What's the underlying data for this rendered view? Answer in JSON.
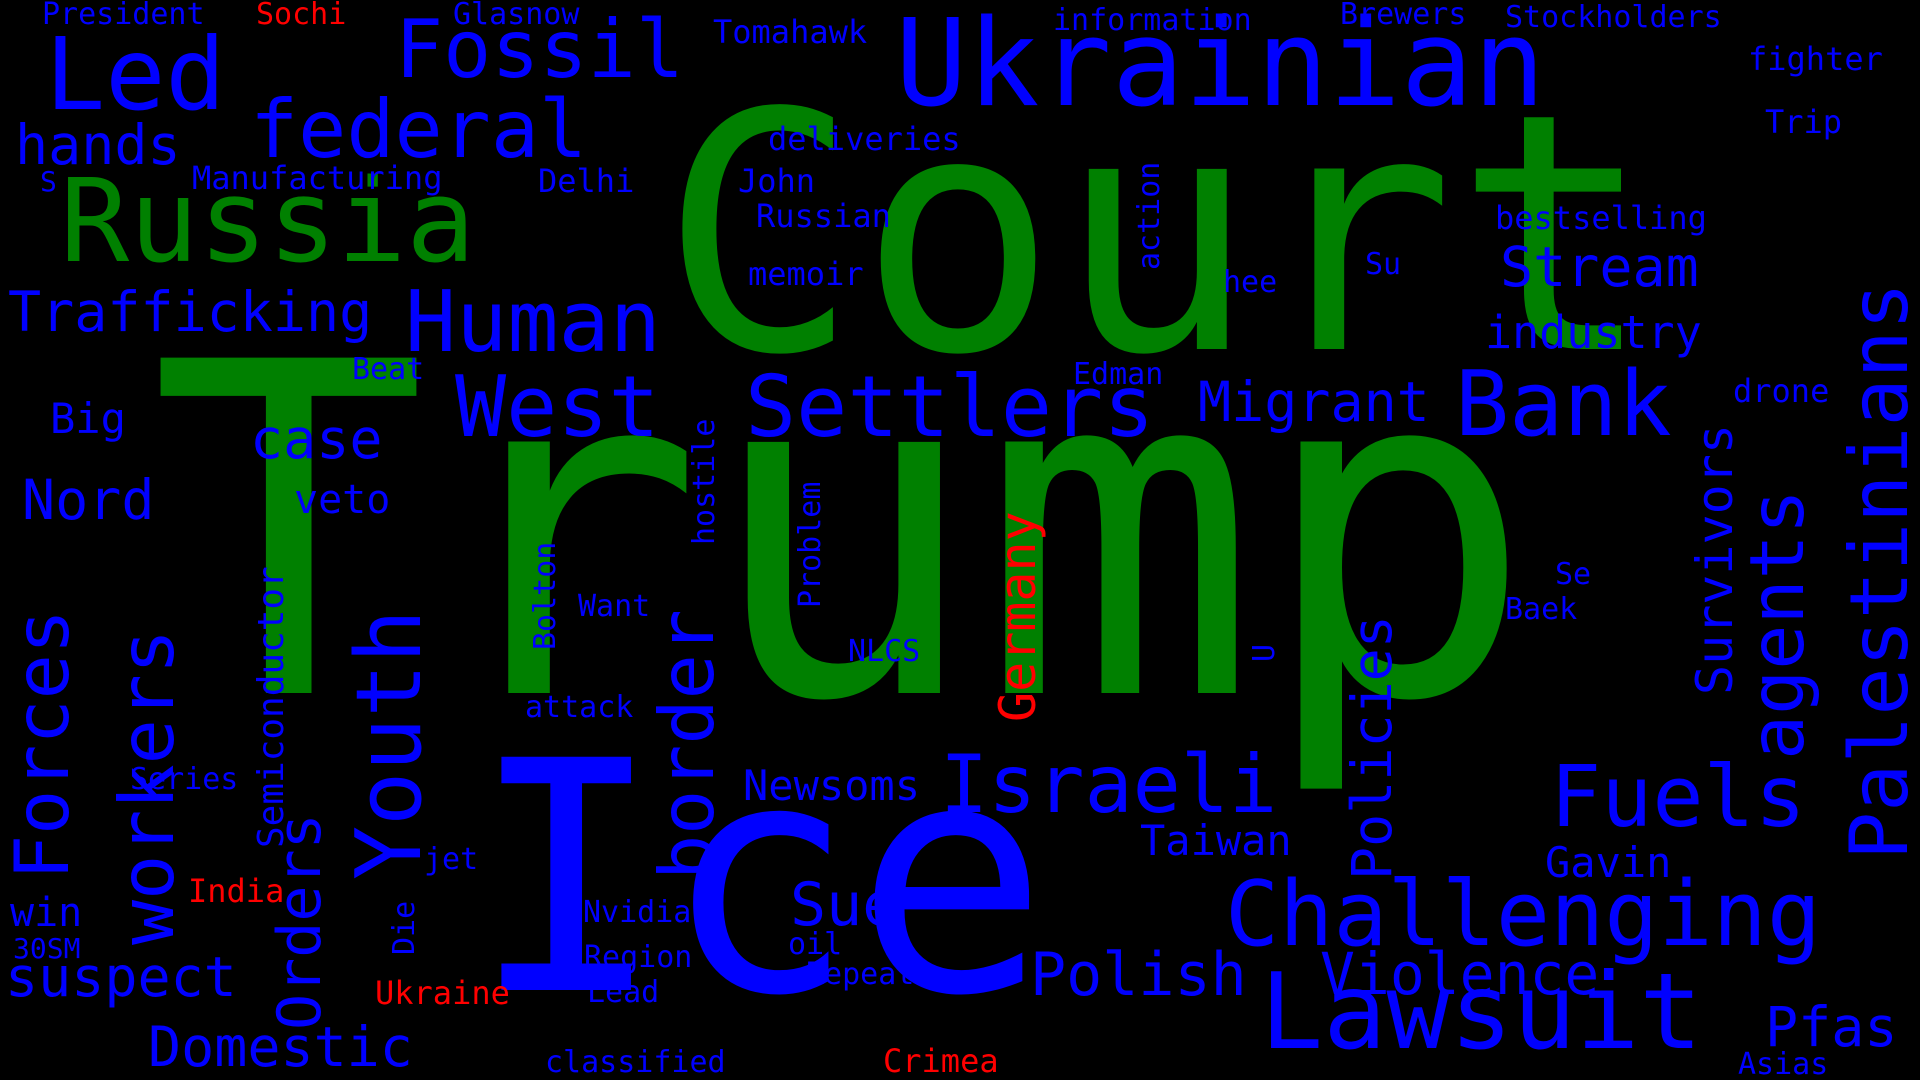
{
  "colors": {
    "background": "#000000",
    "green": "#008000",
    "blue": "#0000ff",
    "red": "#ff0000"
  },
  "words": [
    {
      "text": "Trump",
      "color": "green"
    },
    {
      "text": "Court",
      "color": "green"
    },
    {
      "text": "Ice",
      "color": "blue"
    },
    {
      "text": "Ukrainian",
      "color": "blue"
    },
    {
      "text": "Russia",
      "color": "green"
    },
    {
      "text": "Lawsuit",
      "color": "blue"
    },
    {
      "text": "Challenging",
      "color": "blue"
    },
    {
      "text": "Palestinians",
      "color": "blue"
    },
    {
      "text": "Fossil",
      "color": "blue"
    },
    {
      "text": "Led",
      "color": "blue"
    },
    {
      "text": "federal",
      "color": "blue"
    },
    {
      "text": "Human",
      "color": "blue"
    },
    {
      "text": "West",
      "color": "blue"
    },
    {
      "text": "Settlers",
      "color": "blue"
    },
    {
      "text": "Bank",
      "color": "blue"
    },
    {
      "text": "Israeli",
      "color": "blue"
    },
    {
      "text": "Fuels",
      "color": "blue"
    },
    {
      "text": "agents",
      "color": "blue"
    },
    {
      "text": "Youth",
      "color": "blue"
    },
    {
      "text": "Forces",
      "color": "blue"
    },
    {
      "text": "workers",
      "color": "blue"
    },
    {
      "text": "border",
      "color": "blue"
    },
    {
      "text": "Orders",
      "color": "blue"
    },
    {
      "text": "Domestic",
      "color": "blue"
    },
    {
      "text": "Polish",
      "color": "blue"
    },
    {
      "text": "Violence",
      "color": "blue"
    },
    {
      "text": "Pfas",
      "color": "blue"
    },
    {
      "text": "Stream",
      "color": "blue"
    },
    {
      "text": "Trafficking",
      "color": "blue"
    },
    {
      "text": "Migrant",
      "color": "blue"
    },
    {
      "text": "Policies",
      "color": "blue"
    },
    {
      "text": "Survivors",
      "color": "blue"
    },
    {
      "text": "suspect",
      "color": "blue"
    },
    {
      "text": "Sue",
      "color": "blue"
    },
    {
      "text": "hands",
      "color": "blue"
    },
    {
      "text": "Nord",
      "color": "blue"
    },
    {
      "text": "case",
      "color": "blue"
    },
    {
      "text": "industry",
      "color": "blue"
    },
    {
      "text": "Germany",
      "color": "red"
    },
    {
      "text": "Semiconductor",
      "color": "blue"
    },
    {
      "text": "Newsoms",
      "color": "blue"
    },
    {
      "text": "Taiwan",
      "color": "blue"
    },
    {
      "text": "Gavin",
      "color": "blue"
    },
    {
      "text": "veto",
      "color": "blue"
    },
    {
      "text": "Big",
      "color": "blue"
    },
    {
      "text": "win",
      "color": "blue"
    },
    {
      "text": "Manufacturing",
      "color": "blue"
    },
    {
      "text": "deliveries",
      "color": "blue"
    },
    {
      "text": "bestselling",
      "color": "blue"
    },
    {
      "text": "Russian",
      "color": "blue"
    },
    {
      "text": "memoir",
      "color": "blue"
    },
    {
      "text": "John",
      "color": "blue"
    },
    {
      "text": "Delhi",
      "color": "blue"
    },
    {
      "text": "fighter",
      "color": "blue"
    },
    {
      "text": "Trip",
      "color": "blue"
    },
    {
      "text": "drone",
      "color": "blue"
    },
    {
      "text": "Tomahawk",
      "color": "blue"
    },
    {
      "text": "Brewers",
      "color": "blue"
    },
    {
      "text": "Stockholders",
      "color": "blue"
    },
    {
      "text": "information",
      "color": "blue"
    },
    {
      "text": "Glasnow",
      "color": "blue"
    },
    {
      "text": "President",
      "color": "blue"
    },
    {
      "text": "Sochi",
      "color": "red"
    },
    {
      "text": "India",
      "color": "red"
    },
    {
      "text": "Ukraine",
      "color": "red"
    },
    {
      "text": "Crimea",
      "color": "red"
    },
    {
      "text": "action",
      "color": "blue"
    },
    {
      "text": "hee",
      "color": "blue"
    },
    {
      "text": "Su",
      "color": "blue"
    },
    {
      "text": "Edman",
      "color": "blue"
    },
    {
      "text": "Beat",
      "color": "blue"
    },
    {
      "text": "hostile",
      "color": "blue"
    },
    {
      "text": "Problem",
      "color": "blue"
    },
    {
      "text": "Bolton",
      "color": "blue"
    },
    {
      "text": "Want",
      "color": "blue"
    },
    {
      "text": "NLCS",
      "color": "blue"
    },
    {
      "text": "attack",
      "color": "blue"
    },
    {
      "text": "Series",
      "color": "blue"
    },
    {
      "text": "jet",
      "color": "blue"
    },
    {
      "text": "Die",
      "color": "blue"
    },
    {
      "text": "30SM",
      "color": "blue"
    },
    {
      "text": "Nvidia",
      "color": "blue"
    },
    {
      "text": "Region",
      "color": "blue"
    },
    {
      "text": "Lead",
      "color": "blue"
    },
    {
      "text": "oil",
      "color": "blue"
    },
    {
      "text": "Repeat",
      "color": "blue"
    },
    {
      "text": "classified",
      "color": "blue"
    },
    {
      "text": "Asias",
      "color": "blue"
    },
    {
      "text": "Se",
      "color": "blue"
    },
    {
      "text": "Baek",
      "color": "blue"
    },
    {
      "text": "U",
      "color": "blue"
    },
    {
      "text": "S",
      "color": "blue"
    }
  ]
}
